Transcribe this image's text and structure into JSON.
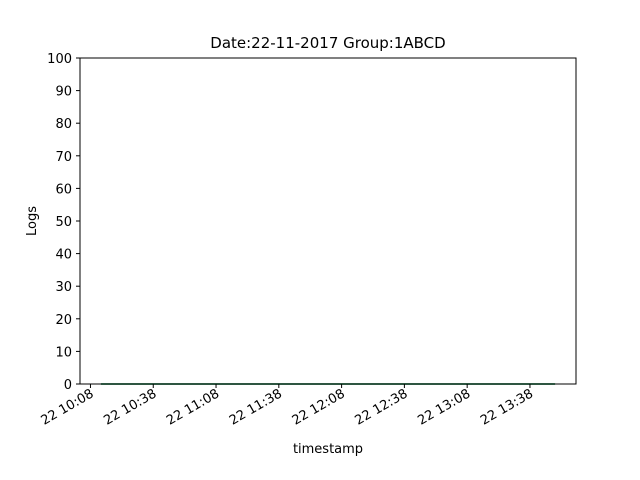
{
  "chart_data": {
    "type": "line",
    "title": "Date:22-11-2017  Group:1ABCD",
    "xlabel": "timestamp",
    "ylabel": "Logs",
    "ylim": [
      0,
      100
    ],
    "yticks": [
      0,
      10,
      20,
      30,
      40,
      50,
      60,
      70,
      80,
      90,
      100
    ],
    "xlim": [
      "2017-11-22 10:03",
      "2017-11-22 14:00"
    ],
    "xticks": [
      {
        "value": "2017-11-22 10:08",
        "label": "22 10:08"
      },
      {
        "value": "2017-11-22 10:38",
        "label": "22 10:38"
      },
      {
        "value": "2017-11-22 11:08",
        "label": "22 11:08"
      },
      {
        "value": "2017-11-22 11:38",
        "label": "22 11:38"
      },
      {
        "value": "2017-11-22 12:08",
        "label": "22 12:08"
      },
      {
        "value": "2017-11-22 12:38",
        "label": "22 12:38"
      },
      {
        "value": "2017-11-22 13:08",
        "label": "22 13:08"
      },
      {
        "value": "2017-11-22 13:38",
        "label": "22 13:38"
      }
    ],
    "series": [
      {
        "color": "#1f77b4",
        "x": [
          "2017-11-22 10:13",
          "2017-11-22 13:50"
        ],
        "y": [
          0,
          0
        ]
      },
      {
        "color": "#2ca02c",
        "x": [
          "2017-11-22 10:13",
          "2017-11-22 13:50"
        ],
        "y": [
          0,
          0
        ]
      }
    ],
    "grid": false,
    "legend": "none"
  }
}
